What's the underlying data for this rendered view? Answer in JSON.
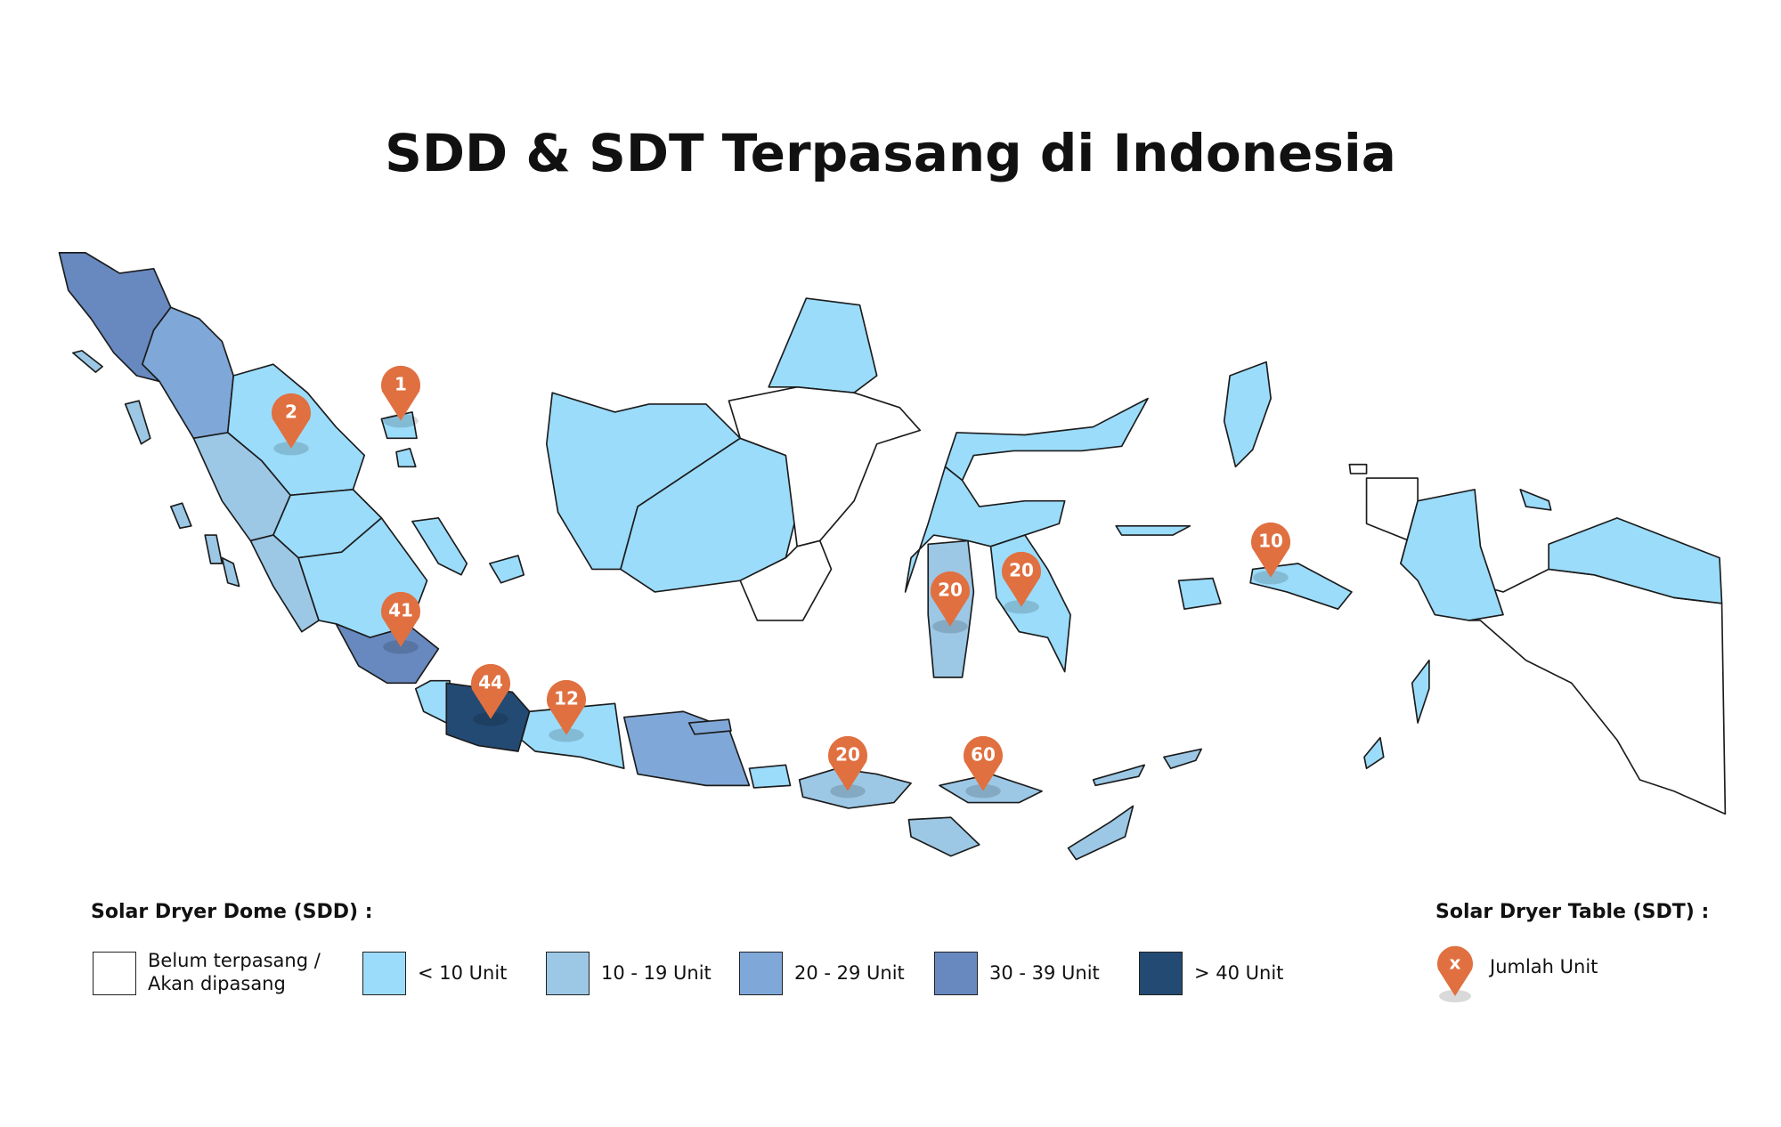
{
  "title": "SDD & SDT Terpasang di Indonesia",
  "markers": [
    1,
    2,
    41,
    44,
    12,
    20,
    60,
    20,
    20,
    10
  ],
  "pin_color": "#e07040",
  "legend": {
    "sdd_title": "Solar Dryer Dome (SDD) :",
    "items": [
      {
        "label": "Belum terpasang / Akan dipasang",
        "color": "#ffffff"
      },
      {
        "label": "< 10 Unit",
        "color": "#9bdcfb"
      },
      {
        "label": "10 - 19 Unit",
        "color": "#9cc8e6"
      },
      {
        "label": "20 - 29 Unit",
        "color": "#7fa8d8"
      },
      {
        "label": "30 - 39 Unit",
        "color": "#6789bf"
      },
      {
        "label": "> 40 Unit",
        "color": "#234a72"
      }
    ],
    "sdt_title": "Solar Dryer Table (SDT) :",
    "pin_symbol": "x",
    "pin_label": "Jumlah Unit"
  }
}
